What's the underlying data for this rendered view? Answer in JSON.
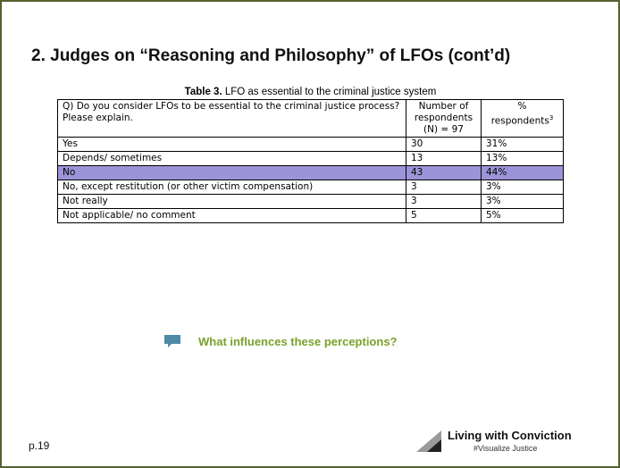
{
  "title": "2. Judges on “Reasoning and Philosophy” of LFOs (cont’d)",
  "table": {
    "caption": {
      "label": "Table 3.",
      "text": "LFO as essential to the criminal justice system"
    },
    "header": [
      "Q) Do you consider LFOs to be essential to the criminal justice process? Please explain.",
      "Number of respondents (N) = 97",
      "% respondents"
    ],
    "header_footnote": "3",
    "rows": [
      [
        "Yes",
        "30",
        "31%"
      ],
      [
        "Depends/ sometimes",
        "13",
        "13%"
      ],
      [
        "No",
        "43",
        "44%"
      ],
      [
        "No, except restitution (or other victim compensation)",
        "3",
        "3%"
      ],
      [
        "Not really",
        "3",
        "3%"
      ],
      [
        "Not applicable/ no comment",
        "5",
        "5%"
      ]
    ]
  },
  "callout": "What influences these perceptions?",
  "footer": {
    "page": "p.19",
    "logo": {
      "name": "Living with Conviction",
      "tagline": "#Visualize Justice"
    }
  }
}
